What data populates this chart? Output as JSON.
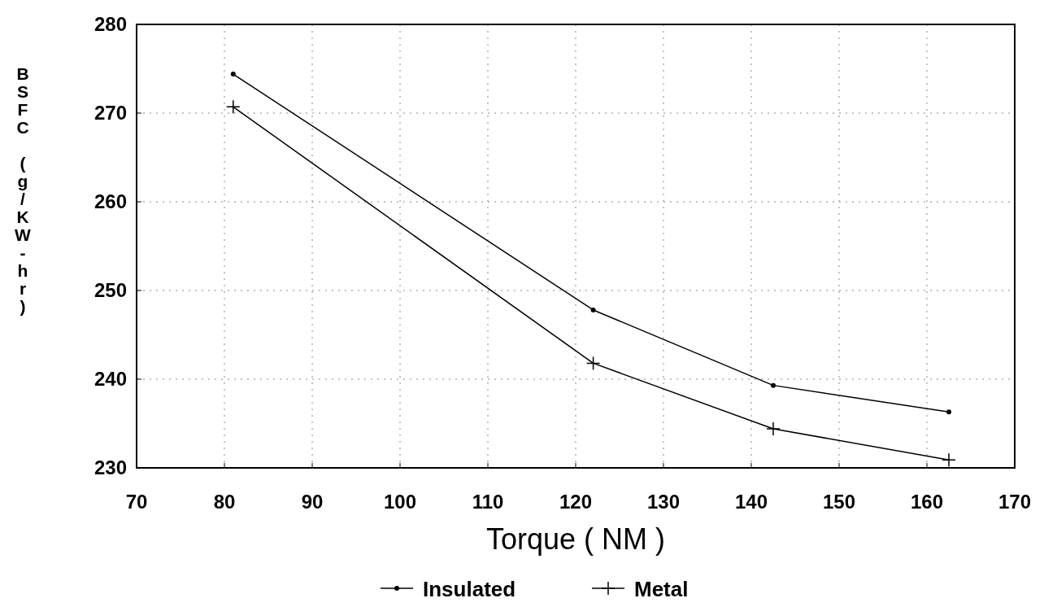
{
  "chart_data": {
    "type": "line",
    "xlabel": "Torque ( NM )",
    "ylabel": "BSFC (g/KW-hr)",
    "xlim": [
      70,
      170
    ],
    "xticks": [
      70,
      80,
      90,
      100,
      110,
      120,
      130,
      140,
      150,
      160,
      170
    ],
    "ylim": [
      230,
      280
    ],
    "yticks": [
      230,
      240,
      250,
      260,
      270,
      280
    ],
    "grid": true,
    "legend": "bottom",
    "series": [
      {
        "name": "Insulated",
        "color": "#000000",
        "marker": "circle",
        "x": [
          81,
          122,
          142.5,
          162.5
        ],
        "values": [
          274.4,
          247.8,
          239.3,
          236.3
        ]
      },
      {
        "name": "Metal",
        "color": "#000000",
        "marker": "cross",
        "x": [
          81,
          122,
          142.5,
          162.5
        ],
        "values": [
          270.7,
          241.8,
          234.4,
          230.9
        ]
      }
    ]
  }
}
